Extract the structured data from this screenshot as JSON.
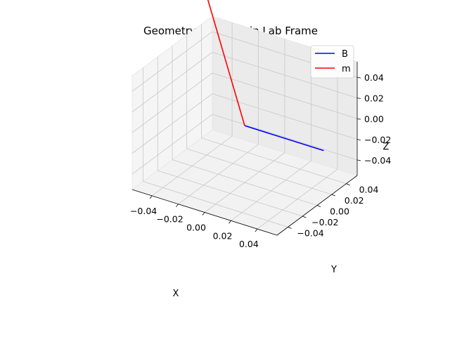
{
  "chart_data": {
    "type": "line3d",
    "title": "Geometry: B and m in Lab Frame",
    "xlabel": "X",
    "ylabel": "Y",
    "zlabel": "Z",
    "xlim": [
      -0.055,
      0.055
    ],
    "ylim": [
      -0.055,
      0.055
    ],
    "zlim": [
      -0.055,
      0.055
    ],
    "xticks": [
      "−0.04",
      "−0.02",
      "0.00",
      "0.02",
      "0.04"
    ],
    "yticks": [
      "−0.04",
      "−0.02",
      "0.00",
      "0.02",
      "0.04"
    ],
    "zticks": [
      "−0.04",
      "−0.02",
      "0.00",
      "0.02",
      "0.04"
    ],
    "grid": true,
    "legend": "top-right",
    "series": [
      {
        "name": "B",
        "color": "#0000ff",
        "from": [
          0,
          0,
          0
        ],
        "to": [
          0.06,
          0,
          0
        ]
      },
      {
        "name": "m",
        "color": "#ff0000",
        "from": [
          0,
          0,
          0
        ],
        "to": [
          -0.045,
          0.03,
          0.09
        ]
      }
    ]
  }
}
